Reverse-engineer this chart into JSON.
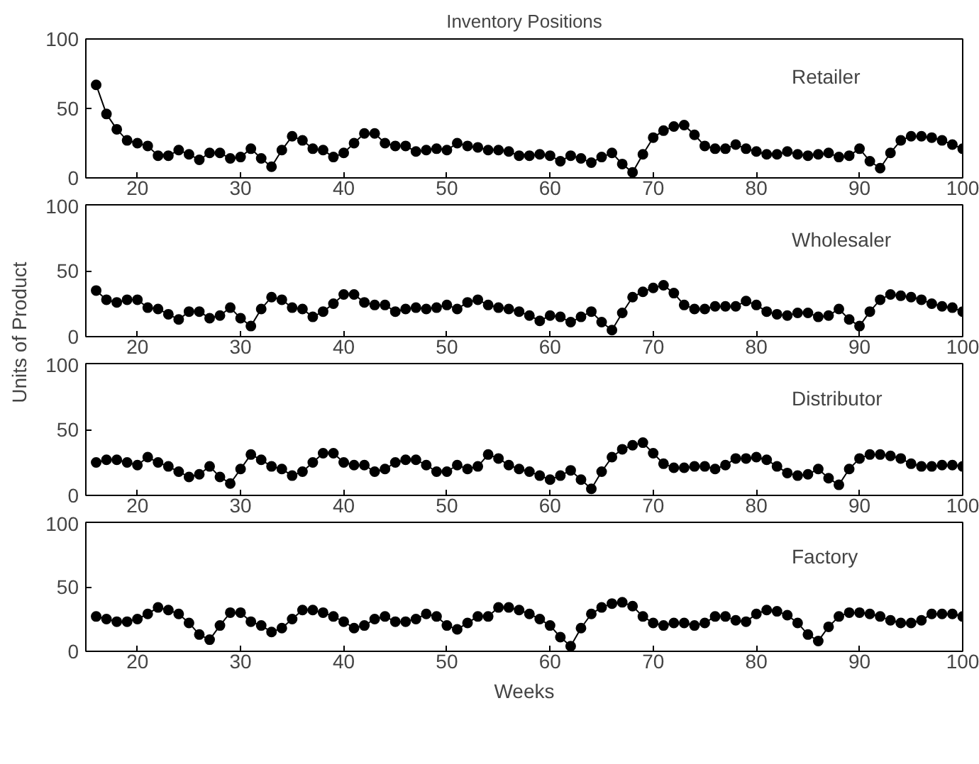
{
  "chart_data": [
    {
      "type": "line",
      "title": "Inventory Positions",
      "annotations": [
        "Retailer"
      ],
      "marker": "circle",
      "line_style": "solid",
      "grid": false,
      "xlim": [
        15,
        100
      ],
      "xticks": [
        20,
        30,
        40,
        50,
        60,
        70,
        80,
        90,
        100
      ],
      "ylim": [
        0,
        100
      ],
      "yticks": [
        0,
        50,
        100
      ],
      "x": [
        16,
        17,
        18,
        19,
        20,
        21,
        22,
        23,
        24,
        25,
        26,
        27,
        28,
        29,
        30,
        31,
        32,
        33,
        34,
        35,
        36,
        37,
        38,
        39,
        40,
        41,
        42,
        43,
        44,
        45,
        46,
        47,
        48,
        49,
        50,
        51,
        52,
        53,
        54,
        55,
        56,
        57,
        58,
        59,
        60,
        61,
        62,
        63,
        64,
        65,
        66,
        67,
        68,
        69,
        70,
        71,
        72,
        73,
        74,
        75,
        76,
        77,
        78,
        79,
        80,
        81,
        82,
        83,
        84,
        85,
        86,
        87,
        88,
        89,
        90,
        91,
        92,
        93,
        94,
        95,
        96,
        97,
        98,
        99,
        100
      ],
      "series": [
        {
          "color": "#000000",
          "values": [
            67,
            46,
            35,
            27,
            25,
            23,
            16,
            16,
            20,
            17,
            13,
            18,
            18,
            14,
            15,
            21,
            14,
            8,
            20,
            30,
            27,
            21,
            20,
            15,
            18,
            25,
            32,
            32,
            25,
            23,
            23,
            19,
            20,
            21,
            20,
            25,
            23,
            22,
            20,
            20,
            19,
            16,
            16,
            17,
            16,
            12,
            16,
            14,
            11,
            15,
            18,
            10,
            4,
            17,
            29,
            34,
            37,
            38,
            31,
            23,
            21,
            21,
            24,
            21,
            19,
            17,
            17,
            19,
            17,
            16,
            17,
            18,
            15,
            16,
            21,
            12,
            7,
            18,
            27,
            30,
            30,
            29,
            27,
            24,
            21
          ]
        }
      ]
    },
    {
      "type": "line",
      "ylabel": "Units of Product",
      "annotations": [
        "Wholesaler"
      ],
      "marker": "circle",
      "line_style": "solid",
      "grid": false,
      "xlim": [
        15,
        100
      ],
      "xticks": [
        20,
        30,
        40,
        50,
        60,
        70,
        80,
        90,
        100
      ],
      "ylim": [
        0,
        100
      ],
      "yticks": [
        0,
        50,
        100
      ],
      "x": [
        16,
        17,
        18,
        19,
        20,
        21,
        22,
        23,
        24,
        25,
        26,
        27,
        28,
        29,
        30,
        31,
        32,
        33,
        34,
        35,
        36,
        37,
        38,
        39,
        40,
        41,
        42,
        43,
        44,
        45,
        46,
        47,
        48,
        49,
        50,
        51,
        52,
        53,
        54,
        55,
        56,
        57,
        58,
        59,
        60,
        61,
        62,
        63,
        64,
        65,
        66,
        67,
        68,
        69,
        70,
        71,
        72,
        73,
        74,
        75,
        76,
        77,
        78,
        79,
        80,
        81,
        82,
        83,
        84,
        85,
        86,
        87,
        88,
        89,
        90,
        91,
        92,
        93,
        94,
        95,
        96,
        97,
        98,
        99,
        100
      ],
      "series": [
        {
          "color": "#000000",
          "values": [
            35,
            28,
            26,
            28,
            28,
            22,
            21,
            17,
            13,
            19,
            19,
            14,
            16,
            22,
            14,
            8,
            21,
            30,
            28,
            22,
            21,
            15,
            19,
            25,
            32,
            32,
            26,
            24,
            24,
            19,
            21,
            22,
            21,
            22,
            24,
            21,
            26,
            28,
            24,
            22,
            21,
            19,
            16,
            12,
            16,
            15,
            11,
            15,
            19,
            11,
            5,
            18,
            30,
            34,
            37,
            39,
            33,
            24,
            21,
            21,
            23,
            23,
            23,
            27,
            24,
            19,
            17,
            16,
            18,
            18,
            15,
            16,
            21,
            13,
            8,
            19,
            28,
            32,
            31,
            30,
            28,
            25,
            23,
            22,
            19
          ]
        }
      ]
    },
    {
      "type": "line",
      "annotations": [
        "Distributor"
      ],
      "marker": "circle",
      "line_style": "solid",
      "grid": false,
      "xlim": [
        15,
        100
      ],
      "xticks": [
        20,
        30,
        40,
        50,
        60,
        70,
        80,
        90,
        100
      ],
      "ylim": [
        0,
        100
      ],
      "yticks": [
        0,
        50,
        100
      ],
      "x": [
        16,
        17,
        18,
        19,
        20,
        21,
        22,
        23,
        24,
        25,
        26,
        27,
        28,
        29,
        30,
        31,
        32,
        33,
        34,
        35,
        36,
        37,
        38,
        39,
        40,
        41,
        42,
        43,
        44,
        45,
        46,
        47,
        48,
        49,
        50,
        51,
        52,
        53,
        54,
        55,
        56,
        57,
        58,
        59,
        60,
        61,
        62,
        63,
        64,
        65,
        66,
        67,
        68,
        69,
        70,
        71,
        72,
        73,
        74,
        75,
        76,
        77,
        78,
        79,
        80,
        81,
        82,
        83,
        84,
        85,
        86,
        87,
        88,
        89,
        90,
        91,
        92,
        93,
        94,
        95,
        96,
        97,
        98,
        99,
        100
      ],
      "series": [
        {
          "color": "#000000",
          "values": [
            25,
            27,
            27,
            25,
            23,
            29,
            25,
            22,
            18,
            14,
            16,
            22,
            14,
            9,
            20,
            31,
            27,
            22,
            20,
            15,
            18,
            25,
            32,
            32,
            25,
            23,
            23,
            18,
            20,
            25,
            27,
            27,
            23,
            18,
            18,
            23,
            20,
            22,
            31,
            28,
            23,
            20,
            18,
            15,
            12,
            15,
            19,
            12,
            5,
            18,
            29,
            35,
            38,
            40,
            32,
            24,
            21,
            21,
            22,
            22,
            20,
            23,
            28,
            28,
            29,
            27,
            22,
            17,
            15,
            16,
            20,
            13,
            8,
            20,
            28,
            31,
            31,
            30,
            28,
            24,
            22,
            22,
            23,
            23,
            22
          ]
        }
      ]
    },
    {
      "type": "line",
      "xlabel": "Weeks",
      "annotations": [
        "Factory"
      ],
      "marker": "circle",
      "line_style": "solid",
      "grid": false,
      "xlim": [
        15,
        100
      ],
      "xticks": [
        20,
        30,
        40,
        50,
        60,
        70,
        80,
        90,
        100
      ],
      "ylim": [
        0,
        100
      ],
      "yticks": [
        0,
        50,
        100
      ],
      "x": [
        16,
        17,
        18,
        19,
        20,
        21,
        22,
        23,
        24,
        25,
        26,
        27,
        28,
        29,
        30,
        31,
        32,
        33,
        34,
        35,
        36,
        37,
        38,
        39,
        40,
        41,
        42,
        43,
        44,
        45,
        46,
        47,
        48,
        49,
        50,
        51,
        52,
        53,
        54,
        55,
        56,
        57,
        58,
        59,
        60,
        61,
        62,
        63,
        64,
        65,
        66,
        67,
        68,
        69,
        70,
        71,
        72,
        73,
        74,
        75,
        76,
        77,
        78,
        79,
        80,
        81,
        82,
        83,
        84,
        85,
        86,
        87,
        88,
        89,
        90,
        91,
        92,
        93,
        94,
        95,
        96,
        97,
        98,
        99,
        100
      ],
      "series": [
        {
          "color": "#000000",
          "values": [
            27,
            25,
            23,
            23,
            25,
            29,
            34,
            32,
            29,
            22,
            13,
            9,
            20,
            30,
            30,
            23,
            20,
            15,
            18,
            25,
            32,
            32,
            30,
            27,
            23,
            18,
            20,
            25,
            27,
            23,
            23,
            25,
            29,
            27,
            20,
            17,
            22,
            27,
            27,
            34,
            34,
            32,
            29,
            25,
            20,
            11,
            4,
            18,
            29,
            34,
            37,
            38,
            35,
            27,
            22,
            20,
            22,
            22,
            20,
            22,
            27,
            27,
            24,
            23,
            29,
            32,
            31,
            28,
            22,
            13,
            8,
            19,
            27,
            30,
            30,
            29,
            27,
            24,
            22,
            22,
            24,
            29,
            29,
            29,
            27
          ]
        }
      ]
    }
  ]
}
